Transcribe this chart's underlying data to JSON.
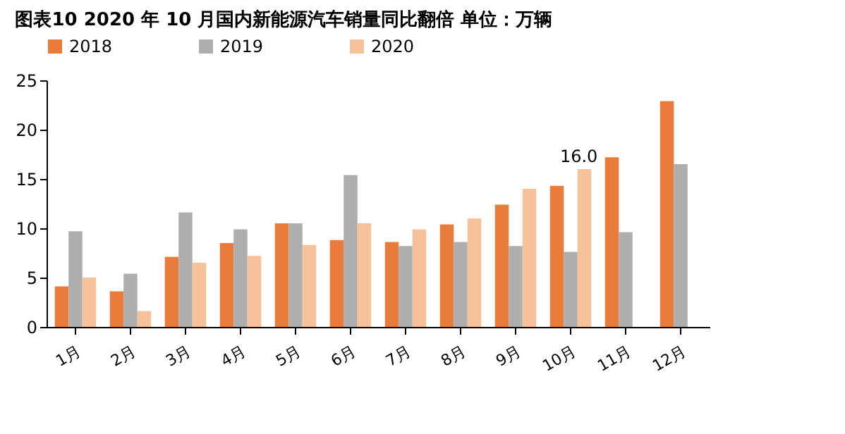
{
  "chart_data": {
    "type": "bar",
    "title": "图表10    2020 年 10 月国内新能源汽车销量同比翻倍   单位：万辆",
    "categories": [
      "1月",
      "2月",
      "3月",
      "4月",
      "5月",
      "6月",
      "7月",
      "8月",
      "9月",
      "10月",
      "11月",
      "12月"
    ],
    "series": [
      {
        "name": "2018",
        "color": "#e97c3a",
        "values": [
          4.1,
          3.6,
          7.1,
          8.5,
          10.5,
          8.8,
          8.6,
          10.4,
          12.4,
          14.3,
          17.2,
          22.9
        ]
      },
      {
        "name": "2019",
        "color": "#aeaeae",
        "values": [
          9.7,
          5.4,
          11.6,
          9.9,
          10.5,
          15.4,
          8.2,
          8.6,
          8.2,
          7.6,
          9.6,
          16.5
        ]
      },
      {
        "name": "2020",
        "color": "#f7c199",
        "values": [
          5.0,
          1.6,
          6.5,
          7.2,
          8.3,
          10.5,
          9.9,
          11.0,
          14.0,
          16.0,
          null,
          null
        ]
      }
    ],
    "annotations": [
      {
        "text": "16.0",
        "x": "10月",
        "y": 16.0
      }
    ],
    "ylim": [
      0,
      25
    ],
    "yticks": [
      0,
      5,
      10,
      15,
      20,
      25
    ],
    "grid": false,
    "legend": "top"
  }
}
